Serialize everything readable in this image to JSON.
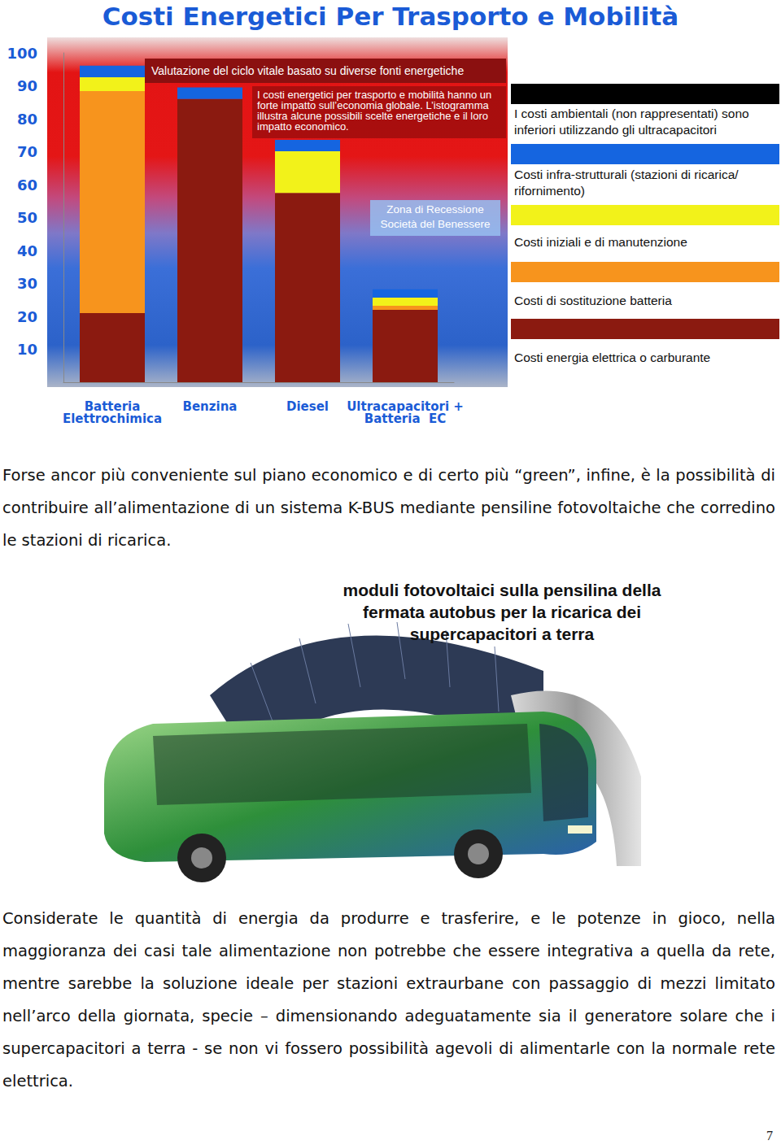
{
  "chart_data": {
    "type": "bar",
    "stacked": true,
    "title": "Costi Energetici Per Trasporto e Mobilità",
    "categories": [
      "Batteria\nElettrochimica",
      "Benzina",
      "Diesel",
      "Ultracapacitori +\nBatteria  EC"
    ],
    "series": [
      {
        "name": "Costi energia elettrica o carburante",
        "color": "#8b1a10",
        "values": [
          21,
          86,
          57.5,
          22
        ]
      },
      {
        "name": "Costi di sostituzione batteria",
        "color": "#f7941d",
        "values": [
          67.4,
          null,
          null,
          1.2
        ]
      },
      {
        "name": "Costi iniziali e di manutenzione",
        "color": "#f2f21a",
        "values": [
          4.2,
          null,
          12.6,
          2.5
        ]
      },
      {
        "name": "Costi infra-strutturali (stazioni di ricarica/ rifornimento)",
        "color": "#1565e0",
        "values": [
          3.5,
          3.5,
          3.5,
          2.5
        ]
      },
      {
        "name": "I costi ambientali (non rappresentati) sono inferiori utilizzando gli ultracapacitori",
        "color": "#000000",
        "values": [
          null,
          null,
          null,
          null
        ]
      }
    ],
    "ylim": [
      0,
      100
    ],
    "yticks": [
      10,
      20,
      30,
      40,
      50,
      60,
      70,
      80,
      90,
      100
    ],
    "grid": false,
    "data_labels": false,
    "annotations": [
      "Valutazione del ciclo vitale basato su diverse fonti energetiche",
      "I costi energetici per trasporto e mobilità hanno un forte impatto sull’economia globale. L’istogramma illustra alcune possibili scelte energetiche e il loro impatto economico.",
      "Zona di Recessione\nSocietà del Benessere"
    ]
  },
  "page": {
    "paragraphs": [
      "Forse ancor più conveniente sul piano economico e di certo più “green”, infine, è la possibilità di contribuire all’alimentazione di un sistema K-BUS mediante pensiline fotovoltaiche che corredino le stazioni di ricarica.",
      "Considerate le quantità di energia da produrre e trasferire, e le potenze in gioco, nella maggioranza dei casi tale alimentazione non potrebbe che essere integrativa a quella da rete, mentre sarebbe la soluzione ideale per stazioni extraurbane con passaggio di mezzi limitato nell’arco della giornata, specie – dimensionando adeguatamente sia il generatore solare che i supercapacitori a terra - se non vi fossero possibilità agevoli di alimentarle con la normale rete elettrica."
    ],
    "figure_caption": "moduli fotovoltaici sulla pensilina della\nfermata autobus per la ricarica dei\nsupercapacitori a terra",
    "page_number": 7
  }
}
